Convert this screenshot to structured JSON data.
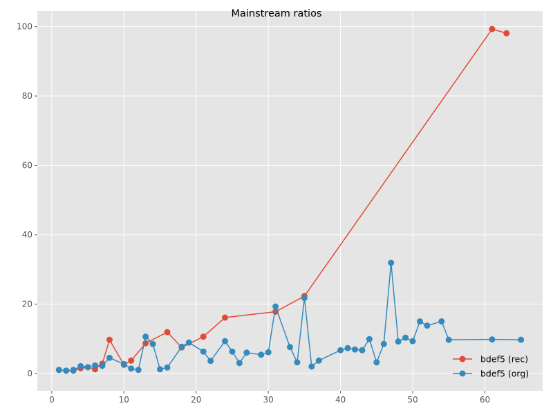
{
  "chart_data": {
    "type": "line",
    "title": "Mainstream ratios",
    "xlabel": "",
    "ylabel": "",
    "xlim": [
      -2,
      68
    ],
    "ylim": [
      -5,
      104.5
    ],
    "xticks": [
      0,
      10,
      20,
      30,
      40,
      50,
      60
    ],
    "yticks": [
      0,
      20,
      40,
      60,
      80,
      100
    ],
    "grid": true,
    "legend_position": "lower-right",
    "series": [
      {
        "name": "bdef5 (rec)",
        "color": "#E24A33",
        "marker": "circle",
        "points": [
          [
            1,
            1
          ],
          [
            2,
            0.8
          ],
          [
            3,
            0.8
          ],
          [
            4,
            1.5
          ],
          [
            5,
            1.8
          ],
          [
            6,
            1.2
          ],
          [
            7,
            2.8
          ],
          [
            8,
            9.7
          ],
          [
            10,
            2.5
          ],
          [
            11,
            3.7
          ],
          [
            13,
            8.7
          ],
          [
            16,
            11.9
          ],
          [
            18,
            7.5
          ],
          [
            21,
            10.6
          ],
          [
            24,
            16.1
          ],
          [
            31,
            17.8
          ],
          [
            35,
            22.3
          ],
          [
            61,
            99.3
          ],
          [
            63,
            98.1
          ]
        ]
      },
      {
        "name": "bdef5 (org)",
        "color": "#348ABD",
        "marker": "circle",
        "points": [
          [
            1,
            1
          ],
          [
            2,
            0.8
          ],
          [
            3,
            1
          ],
          [
            4,
            2.1
          ],
          [
            5,
            1.8
          ],
          [
            6,
            2.3
          ],
          [
            7,
            2.2
          ],
          [
            8,
            4.5
          ],
          [
            10,
            2.7
          ],
          [
            11,
            1.4
          ],
          [
            12,
            1
          ],
          [
            13,
            10.6
          ],
          [
            14,
            8.5
          ],
          [
            15,
            1.2
          ],
          [
            16,
            1.7
          ],
          [
            18,
            7.7
          ],
          [
            19,
            8.9
          ],
          [
            21,
            6.3
          ],
          [
            22,
            3.6
          ],
          [
            24,
            9.3
          ],
          [
            25,
            6.3
          ],
          [
            26,
            3
          ],
          [
            27,
            6
          ],
          [
            29,
            5.4
          ],
          [
            30,
            6.1
          ],
          [
            31,
            19.3
          ],
          [
            33,
            7.6
          ],
          [
            34,
            3.2
          ],
          [
            35,
            21.8
          ],
          [
            36,
            2
          ],
          [
            37,
            3.7
          ],
          [
            40,
            6.7
          ],
          [
            41,
            7.3
          ],
          [
            42,
            6.9
          ],
          [
            43,
            6.7
          ],
          [
            44,
            9.9
          ],
          [
            45,
            3.2
          ],
          [
            46,
            8.5
          ],
          [
            47,
            31.9
          ],
          [
            48,
            9.2
          ],
          [
            49,
            10.3
          ],
          [
            50,
            9.3
          ],
          [
            51,
            15
          ],
          [
            52,
            13.8
          ],
          [
            54,
            15
          ],
          [
            55,
            9.7
          ],
          [
            61,
            9.8
          ],
          [
            65,
            9.7
          ]
        ]
      }
    ]
  },
  "colors": {
    "background": "#E5E5E5",
    "grid": "#FFFFFF",
    "tick_text": "#555555",
    "title_text": "#000000"
  }
}
